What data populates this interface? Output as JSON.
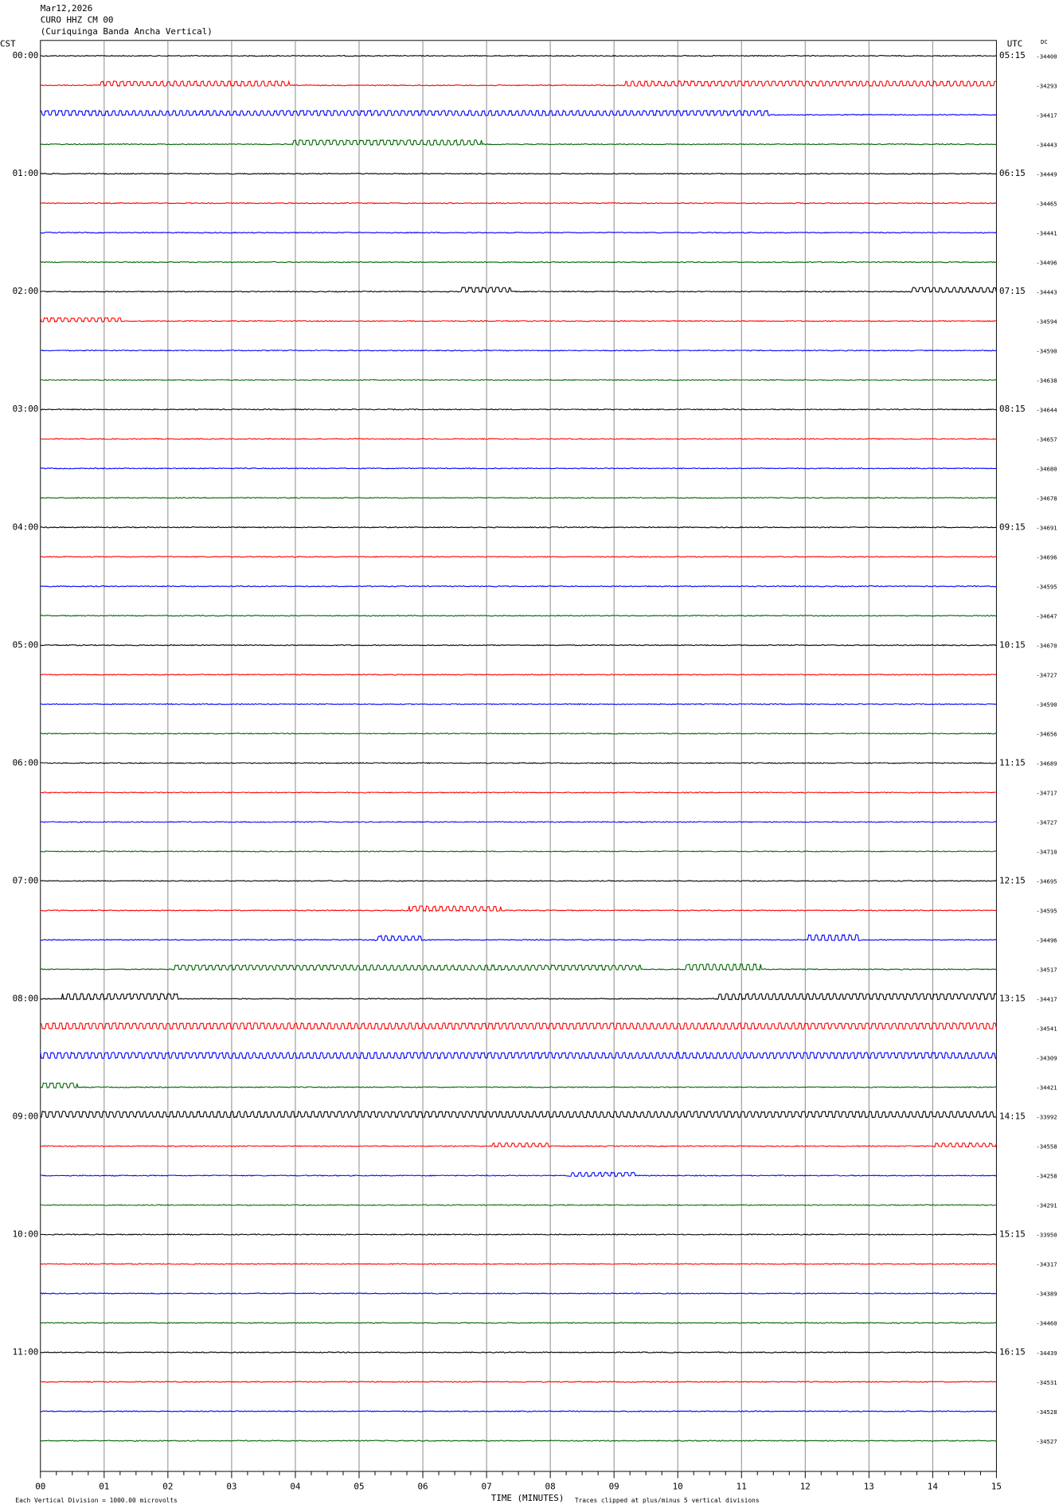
{
  "chart_data": {
    "type": "helicorder",
    "header": [
      "Mar12,2026",
      "CURO HHZ CM 00",
      "(Curiquinga Banda Ancha Vertical)"
    ],
    "left_axis_label": "CST",
    "right_axis_label": "UTC",
    "dc_label": "DC",
    "left_times": [
      "00:00",
      "01:00",
      "02:00",
      "03:00",
      "04:00",
      "05:00",
      "06:00",
      "07:00",
      "08:00",
      "09:00",
      "10:00",
      "11:00"
    ],
    "right_times": [
      "05:15",
      "06:15",
      "07:15",
      "08:15",
      "09:15",
      "10:15",
      "11:15",
      "12:15",
      "13:15",
      "14:15",
      "15:15",
      "16:15"
    ],
    "dc_values": [
      -34400,
      -34293,
      -34417,
      -34443,
      -34449,
      -34465,
      -34441,
      -34496,
      -34443,
      -34594,
      -34590,
      -34638,
      -34644,
      -34657,
      -34680,
      -34678,
      -34691,
      -34696,
      -34595,
      -34647,
      -34670,
      -34727,
      -34590,
      -34656,
      -34689,
      -34717,
      -34727,
      -34710,
      -34695,
      -34595,
      -34496,
      -34517,
      -34417,
      -34541,
      -34309,
      -34421,
      -33992,
      -34558,
      -34258,
      -34291,
      -33950,
      -34317,
      -34389,
      -34460,
      -34439,
      -34531,
      -34528,
      -34527
    ],
    "x_tick_labels": [
      "00",
      "01",
      "02",
      "03",
      "04",
      "05",
      "06",
      "07",
      "08",
      "09",
      "10",
      "11",
      "12",
      "13",
      "14",
      "15"
    ],
    "x_axis_title": "TIME (MINUTES)",
    "footer_left": "Each Vertical Division = 1000.00 microvolts",
    "footer_right": "Traces clipped at plus/minus 5 vertical divisions",
    "trace_colors": [
      "#000000",
      "#ff0000",
      "#0000ff",
      "#006600"
    ],
    "grid": true
  }
}
